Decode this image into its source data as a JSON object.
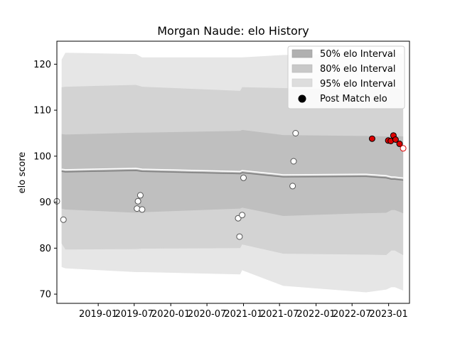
{
  "chart_data": {
    "type": "line",
    "title": "Morgan Naude: elo History",
    "xlabel": "",
    "ylabel": "elo score",
    "ylim": [
      68,
      125
    ],
    "xlim": [
      "2018-06-07",
      "2023-04-16"
    ],
    "x_ticks": [
      "2019-01",
      "2019-07",
      "2020-01",
      "2020-07",
      "2021-01",
      "2021-07",
      "2022-01",
      "2022-07",
      "2023-01"
    ],
    "y_ticks": [
      70,
      80,
      90,
      100,
      110,
      120
    ],
    "grid": false,
    "legend_position": "top-right",
    "legend": {
      "band50": "50% elo Interval",
      "band80": "80% elo Interval",
      "band95": "95% elo Interval",
      "post_match": "Post Match elo"
    },
    "colors": {
      "band50": "#bfbfbf",
      "band80": "#d3d3d3",
      "band95": "#e6e6e6",
      "mean_line": "#808080",
      "recent_point": "#dd0000",
      "old_point": "#ffffff"
    },
    "intervals": {
      "x": [
        "2018-07-01",
        "2018-07-20",
        "2019-07-10",
        "2019-08-10",
        "2020-12-15",
        "2020-12-25",
        "2021-07-20",
        "2022-09-10",
        "2022-12-20",
        "2023-01-15",
        "2023-02-01",
        "2023-03-14",
        "2023-03-15"
      ],
      "mean": [
        96.7,
        96.6,
        96.9,
        96.7,
        96.2,
        96.4,
        95.5,
        95.6,
        95.3,
        95.0,
        95.0,
        94.8,
        94.8
      ],
      "p50_low": [
        88.6,
        88.4,
        87.7,
        87.8,
        88.6,
        88.8,
        87.0,
        87.6,
        87.7,
        88.3,
        88.3,
        87.6,
        87.6
      ],
      "p50_high": [
        104.8,
        104.7,
        105.1,
        105.1,
        105.5,
        105.7,
        104.6,
        104.4,
        104.3,
        104.4,
        104.4,
        104.3,
        104.3
      ],
      "p80_low": [
        81.0,
        79.7,
        79.8,
        79.9,
        80.0,
        80.8,
        78.8,
        78.6,
        78.5,
        79.5,
        79.5,
        78.5,
        78.5
      ],
      "p80_high": [
        115.0,
        115.1,
        115.5,
        115.1,
        114.2,
        115.0,
        114.8,
        114.4,
        114.5,
        114.8,
        114.8,
        114.3,
        114.3
      ],
      "p95_low": [
        75.9,
        75.6,
        74.8,
        74.8,
        74.3,
        75.2,
        71.8,
        70.4,
        71.0,
        71.5,
        71.5,
        70.8,
        70.8
      ],
      "p95_high": [
        121.0,
        122.5,
        122.2,
        121.5,
        121.5,
        121.5,
        122.0,
        122.2,
        122.2,
        122.5,
        122.5,
        122.2,
        122.2
      ]
    },
    "post_match": [
      {
        "x": "2018-06-07",
        "y": 90.2,
        "recent": false
      },
      {
        "x": "2018-07-10",
        "y": 86.2,
        "recent": false
      },
      {
        "x": "2019-07-15",
        "y": 88.6,
        "recent": false
      },
      {
        "x": "2019-07-20",
        "y": 90.2,
        "recent": false
      },
      {
        "x": "2019-08-01",
        "y": 91.5,
        "recent": false
      },
      {
        "x": "2019-08-10",
        "y": 88.4,
        "recent": false
      },
      {
        "x": "2020-12-05",
        "y": 86.5,
        "recent": false
      },
      {
        "x": "2020-12-12",
        "y": 82.5,
        "recent": false
      },
      {
        "x": "2020-12-25",
        "y": 87.2,
        "recent": false
      },
      {
        "x": "2021-01-01",
        "y": 95.3,
        "recent": false
      },
      {
        "x": "2021-09-05",
        "y": 93.5,
        "recent": false
      },
      {
        "x": "2021-09-10",
        "y": 98.9,
        "recent": false
      },
      {
        "x": "2021-09-20",
        "y": 105.0,
        "recent": false
      },
      {
        "x": "2022-10-10",
        "y": 103.8,
        "recent": true
      },
      {
        "x": "2022-12-30",
        "y": 103.4,
        "recent": true
      },
      {
        "x": "2023-01-12",
        "y": 103.3,
        "recent": true
      },
      {
        "x": "2023-01-25",
        "y": 104.5,
        "recent": true
      },
      {
        "x": "2023-02-05",
        "y": 103.6,
        "recent": true
      },
      {
        "x": "2023-02-25",
        "y": 102.7,
        "recent": true
      },
      {
        "x": "2023-03-15",
        "y": 101.7,
        "recent": false
      }
    ]
  }
}
